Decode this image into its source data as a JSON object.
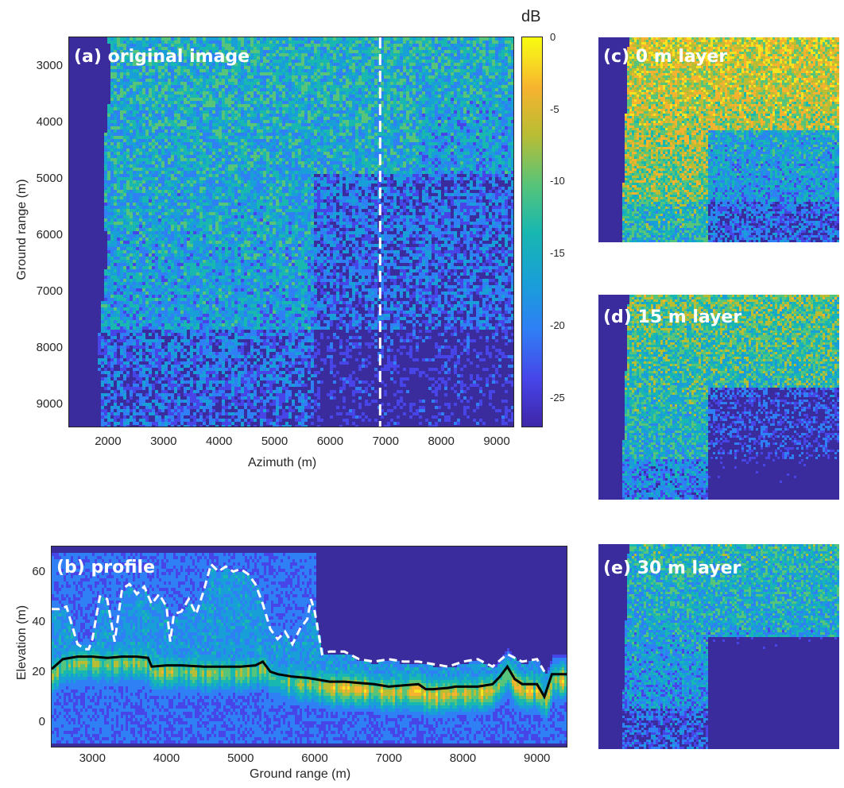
{
  "colors": {
    "background": "#3a2c9c",
    "cmap": [
      "#3e26a8",
      "#4744e8",
      "#2f7ff5",
      "#199fd8",
      "#18b7b0",
      "#56c47a",
      "#b9bd34",
      "#f7b32f",
      "#f7e31e",
      "#f9fb0e"
    ]
  },
  "panel_a": {
    "label": "(a) original image",
    "xlabel": "Azimuth (m)",
    "ylabel": "Ground range (m)",
    "xticks": [
      "2000",
      "3000",
      "4000",
      "5000",
      "6000",
      "7000",
      "8000",
      "9000"
    ],
    "yticks": [
      "3000",
      "4000",
      "5000",
      "6000",
      "7000",
      "8000",
      "9000"
    ],
    "xtick_values": [
      2000,
      3000,
      4000,
      5000,
      6000,
      7000,
      8000,
      9000
    ],
    "ytick_values": [
      3000,
      4000,
      5000,
      6000,
      7000,
      8000,
      9000
    ],
    "xlim": [
      1300,
      9300
    ],
    "ylim": [
      2500,
      9400
    ],
    "dashed_line_azimuth": 6900
  },
  "colorbar": {
    "title": "dB",
    "ticks": [
      "0",
      "-5",
      "-10",
      "-15",
      "-20",
      "-25"
    ],
    "tick_values": [
      0,
      -5,
      -10,
      -15,
      -20,
      -25
    ],
    "range": [
      -27,
      0
    ]
  },
  "panel_b": {
    "label": "(b) profile",
    "xlabel": "Ground range (m)",
    "ylabel": "Elevation (m)",
    "xticks": [
      "3000",
      "4000",
      "5000",
      "6000",
      "7000",
      "8000",
      "9000"
    ],
    "yticks": [
      "60",
      "40",
      "20",
      "0"
    ],
    "xtick_values": [
      3000,
      4000,
      5000,
      6000,
      7000,
      8000,
      9000
    ],
    "ytick_values": [
      60,
      40,
      20,
      0
    ],
    "xlim": [
      2450,
      9400
    ],
    "ylim": [
      -10,
      70
    ]
  },
  "panel_c": {
    "label": "(c) 0 m layer"
  },
  "panel_d": {
    "label": "(d) 15 m layer"
  },
  "panel_e": {
    "label": "(e) 30 m layer"
  },
  "chart_data": [
    {
      "type": "heatmap",
      "title": "(a) original image",
      "xlabel": "Azimuth (m)",
      "ylabel": "Ground range (m)",
      "xlim": [
        1300,
        9300
      ],
      "ylim": [
        2500,
        9400
      ],
      "colorbar": {
        "label": "dB",
        "range": [
          -27,
          0
        ]
      }
    },
    {
      "type": "line",
      "title": "(b) profile",
      "xlabel": "Ground range (m)",
      "ylabel": "Elevation (m)",
      "xlim": [
        2450,
        9400
      ],
      "ylim": [
        -10,
        70
      ],
      "series": [
        {
          "style": "solid-black",
          "x": [
            2450,
            2600,
            2800,
            3000,
            3200,
            3400,
            3600,
            3750,
            3800,
            4000,
            4200,
            4500,
            4800,
            5000,
            5200,
            5300,
            5400,
            5500,
            5700,
            5900,
            6000,
            6200,
            6400,
            6600,
            6800,
            7000,
            7200,
            7400,
            7500,
            7600,
            7800,
            7900,
            8000,
            8200,
            8400,
            8500,
            8600,
            8700,
            8800,
            9000,
            9100,
            9200,
            9400
          ],
          "y": [
            21,
            25,
            26,
            26,
            25.5,
            26,
            26,
            25.5,
            22,
            22.5,
            22.5,
            22,
            22,
            22,
            22.5,
            24,
            20,
            19,
            18,
            17.5,
            17,
            16,
            16,
            15.5,
            15,
            14,
            14.5,
            15,
            13,
            13,
            13.5,
            14,
            14,
            14,
            15,
            18,
            22,
            17,
            15,
            15,
            10,
            19,
            19
          ]
        },
        {
          "style": "dashed-white",
          "x": [
            2450,
            2550,
            2650,
            2700,
            2800,
            2900,
            2950,
            3000,
            3100,
            3200,
            3300,
            3400,
            3500,
            3600,
            3700,
            3800,
            3900,
            4000,
            4050,
            4100,
            4200,
            4300,
            4400,
            4500,
            4600,
            4700,
            4800,
            4900,
            5000,
            5100,
            5200,
            5300,
            5400,
            5500,
            5600,
            5700,
            5800,
            5900,
            5950,
            6000,
            6100,
            6200,
            6400,
            6600,
            6800,
            7000,
            7200,
            7400,
            7600,
            7800,
            8000,
            8200,
            8400,
            8600,
            8800,
            9000,
            9100
          ],
          "y": [
            45,
            45,
            46,
            41,
            31,
            29,
            29,
            33,
            50,
            49,
            32,
            53,
            55,
            51,
            54,
            47,
            51,
            46,
            32,
            43,
            44,
            49,
            43,
            52,
            63,
            60,
            62,
            60,
            61,
            59,
            55,
            47,
            37,
            33,
            36,
            31,
            37,
            41,
            49,
            44,
            27,
            28,
            28,
            25,
            24,
            25,
            24,
            24,
            23,
            22,
            24,
            25,
            22,
            27,
            24,
            25,
            20
          ]
        }
      ]
    }
  ]
}
